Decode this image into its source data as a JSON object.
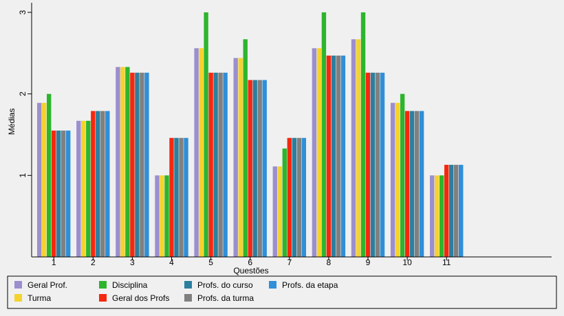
{
  "chart_data": {
    "type": "bar",
    "title": "",
    "xlabel": "Questões",
    "ylabel": "Médias",
    "ylim": [
      0,
      3
    ],
    "yticks": [
      1,
      2,
      3
    ],
    "grid": false,
    "legend_position": "bottom",
    "categories": [
      "1",
      "2",
      "3",
      "4",
      "5",
      "6",
      "7",
      "8",
      "9",
      "10",
      "11"
    ],
    "series": [
      {
        "name": "Geral Prof.",
        "color": "#9b8fce",
        "values": [
          1.89,
          1.67,
          2.33,
          1.0,
          2.56,
          2.44,
          1.11,
          2.56,
          2.67,
          1.89,
          1.0
        ]
      },
      {
        "name": "Turma",
        "color": "#f5d22e",
        "values": [
          1.89,
          1.67,
          2.33,
          1.0,
          2.56,
          2.44,
          1.11,
          2.56,
          2.67,
          1.89,
          1.0
        ]
      },
      {
        "name": "Disciplina",
        "color": "#2db52d",
        "values": [
          2.0,
          1.67,
          2.33,
          1.0,
          3.0,
          2.67,
          1.33,
          3.0,
          3.0,
          2.0,
          1.0
        ]
      },
      {
        "name": "Geral dos Profs",
        "color": "#f5280f",
        "values": [
          1.55,
          1.79,
          2.26,
          1.46,
          2.26,
          2.17,
          1.46,
          2.47,
          2.26,
          1.79,
          1.13
        ]
      },
      {
        "name": "Profs. do curso",
        "color": "#2c7f9e",
        "values": [
          1.55,
          1.79,
          2.26,
          1.46,
          2.26,
          2.17,
          1.46,
          2.47,
          2.26,
          1.79,
          1.13
        ]
      },
      {
        "name": "Profs. da turma",
        "color": "#808080",
        "values": [
          1.55,
          1.79,
          2.26,
          1.46,
          2.26,
          2.17,
          1.46,
          2.47,
          2.26,
          1.79,
          1.13
        ]
      },
      {
        "name": "Profs. da etapa",
        "color": "#2f8fd8",
        "values": [
          1.55,
          1.79,
          2.26,
          1.46,
          2.26,
          2.17,
          1.46,
          2.47,
          2.26,
          1.79,
          1.13
        ]
      }
    ]
  }
}
